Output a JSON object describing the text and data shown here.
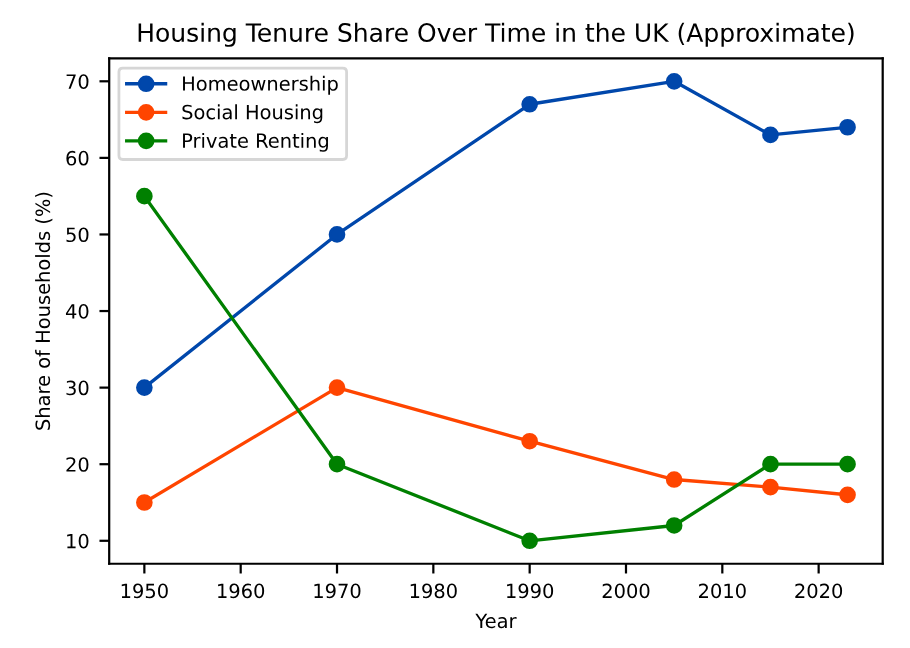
{
  "chart_data": {
    "type": "line",
    "title": "Housing Tenure Share Over Time in the UK (Approximate)",
    "xlabel": "Year",
    "ylabel": "Share of Households (%)",
    "x": [
      1950,
      1970,
      1990,
      2005,
      2015,
      2023
    ],
    "series": [
      {
        "name": "Homeownership",
        "color": "#0047ab",
        "values": [
          30,
          50,
          67,
          70,
          63,
          64
        ]
      },
      {
        "name": "Social Housing",
        "color": "#ff4500",
        "values": [
          15,
          30,
          23,
          18,
          17,
          16
        ]
      },
      {
        "name": "Private Renting",
        "color": "#008000",
        "values": [
          55,
          20,
          10,
          12,
          20,
          20
        ]
      }
    ],
    "xlim": [
      1946.35,
      2026.65
    ],
    "xticks": [
      1950,
      1960,
      1970,
      1980,
      1990,
      2000,
      2010,
      2020
    ],
    "ylim": [
      7,
      73
    ],
    "yticks": [
      10,
      20,
      30,
      40,
      50,
      60,
      70
    ],
    "marker": "circle",
    "line_style": "solid",
    "legend": "top left",
    "grid": false
  }
}
